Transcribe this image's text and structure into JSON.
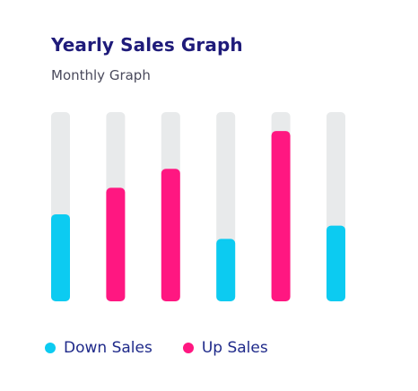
{
  "chart_data": {
    "type": "bar",
    "title": "Yearly Sales Graph",
    "subtitle": "Monthly Graph",
    "categories": [
      "",
      "",
      "",
      "",
      "",
      ""
    ],
    "values": [
      46,
      60,
      70,
      33,
      90,
      40
    ],
    "series_assignment": [
      "Down Sales",
      "Up Sales",
      "Up Sales",
      "Down Sales",
      "Up Sales",
      "Down Sales"
    ],
    "ylim": [
      0,
      100
    ],
    "grid": false,
    "legend": {
      "placement": "bottom-left",
      "entries": [
        {
          "name": "Down Sales",
          "color": "#0ccbf1"
        },
        {
          "name": "Up Sales",
          "color": "#ff1781"
        }
      ]
    },
    "colors": {
      "track": "#e8eaeb",
      "down": "#0ccbf1",
      "up": "#ff1781"
    }
  }
}
